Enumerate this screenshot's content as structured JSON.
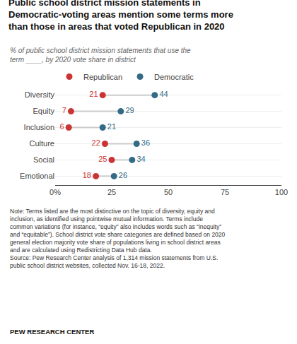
{
  "chart_data": {
    "type": "dumbbell",
    "title": "Public school district mission statements in\nDemocratic-voting areas mention some terms more\nthan those in areas that voted Republican in 2020",
    "subtitle": "% of public school district mission statements that use the\nterm ____, by 2020 vote share in district",
    "categories": [
      "Diversity",
      "Equity",
      "Inclusion",
      "Culture",
      "Social",
      "Emotional"
    ],
    "series": [
      {
        "name": "Republican",
        "color": "#cc3333",
        "values": [
          21,
          7,
          6,
          22,
          25,
          18
        ]
      },
      {
        "name": "Democratic",
        "color": "#336b87",
        "values": [
          44,
          29,
          21,
          36,
          34,
          26
        ]
      }
    ],
    "color": "#cccccc",
    "orientation": "horizontal",
    "xlim": [
      0,
      100
    ],
    "xticks": [
      {
        "value": 0,
        "label": "0%"
      },
      25,
      50,
      75,
      100
    ],
    "grid": "y",
    "legend": "top",
    "data_labels": true,
    "annotations": [
      "Note: Terms listed are the most distinctive on the topic of diversity, equity and\ninclusion, as identified using pointwise mutual information. Terms include\ncommon variations (for instance, “equity” also includes words such as “inequity”\nand “equitable”). School district vote share categories are defined based on 2020\ngeneral election majority vote share of populations living in school district areas\nand are calculated using Redistricting Data Hub data.\nSource: Pew Research Center analysis of 1,314 mission statements from U.S.\npublic school district websites, collected Nov. 16-18, 2022.",
      "PEW RESEARCH CENTER"
    ]
  }
}
